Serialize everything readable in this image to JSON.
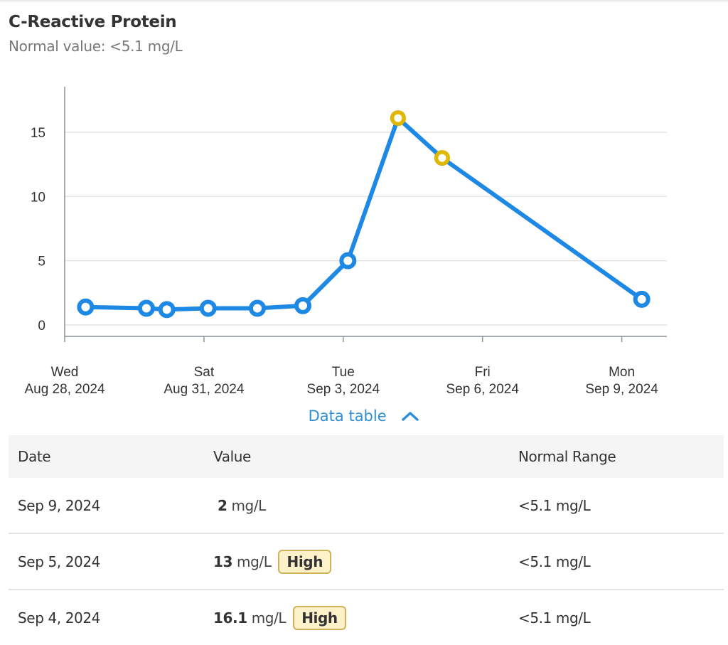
{
  "header": {
    "title": "C-Reactive Protein",
    "subtitle": "Normal value: <5.1 mg/L"
  },
  "chart_data": {
    "type": "line",
    "title": "C-Reactive Protein",
    "xlabel": "",
    "ylabel": "",
    "ylim": [
      -0.8,
      18.5
    ],
    "yticks": [
      0,
      5,
      10,
      15
    ],
    "xlim_days_from_aug28": [
      0,
      13
    ],
    "xticks": [
      {
        "day": 0,
        "line1": "Wed",
        "line2": "Aug 28, 2024"
      },
      {
        "day": 3,
        "line1": "Sat",
        "line2": "Aug 31, 2024"
      },
      {
        "day": 6,
        "line1": "Tue",
        "line2": "Sep 3, 2024"
      },
      {
        "day": 9,
        "line1": "Fri",
        "line2": "Sep 6, 2024"
      },
      {
        "day": 12,
        "line1": "Mon",
        "line2": "Sep 9, 2024"
      }
    ],
    "grid": true,
    "line_color": "#1e88e5",
    "high_color": "#e0b800",
    "normal_max": 5.1,
    "series": [
      {
        "name": "C-Reactive Protein",
        "points": [
          {
            "date": "Aug 28, 2024",
            "day": 0.45,
            "value": 1.4
          },
          {
            "date": "Aug 29, 2024",
            "day": 1.76,
            "value": 1.3
          },
          {
            "date": "Aug 30, 2024",
            "day": 2.2,
            "value": 1.2
          },
          {
            "date": "Aug 31, 2024",
            "day": 3.09,
            "value": 1.3
          },
          {
            "date": "Sep 1, 2024",
            "day": 4.15,
            "value": 1.3
          },
          {
            "date": "Sep 2, 2024",
            "day": 5.13,
            "value": 1.5
          },
          {
            "date": "Sep 3, 2024",
            "day": 6.1,
            "value": 5
          },
          {
            "date": "Sep 4, 2024",
            "day": 7.18,
            "value": 16.1,
            "high": true
          },
          {
            "date": "Sep 5, 2024",
            "day": 8.13,
            "value": 13,
            "high": true
          },
          {
            "date": "Sep 9, 2024",
            "day": 12.43,
            "value": 2
          }
        ]
      }
    ]
  },
  "data_table_toggle": {
    "label": "Data table",
    "icon": "chevron-up-icon"
  },
  "table": {
    "headers": [
      "Date",
      "Value",
      "Normal Range"
    ],
    "rows": [
      {
        "date": "Sep 9, 2024",
        "value": "2",
        "unit": "mg/L",
        "badge": "",
        "range": "<5.1 mg/L"
      },
      {
        "date": "Sep 5, 2024",
        "value": "13",
        "unit": "mg/L",
        "badge": "High",
        "range": "<5.1 mg/L"
      },
      {
        "date": "Sep 4, 2024",
        "value": "16.1",
        "unit": "mg/L",
        "badge": "High",
        "range": "<5.1 mg/L"
      }
    ]
  }
}
